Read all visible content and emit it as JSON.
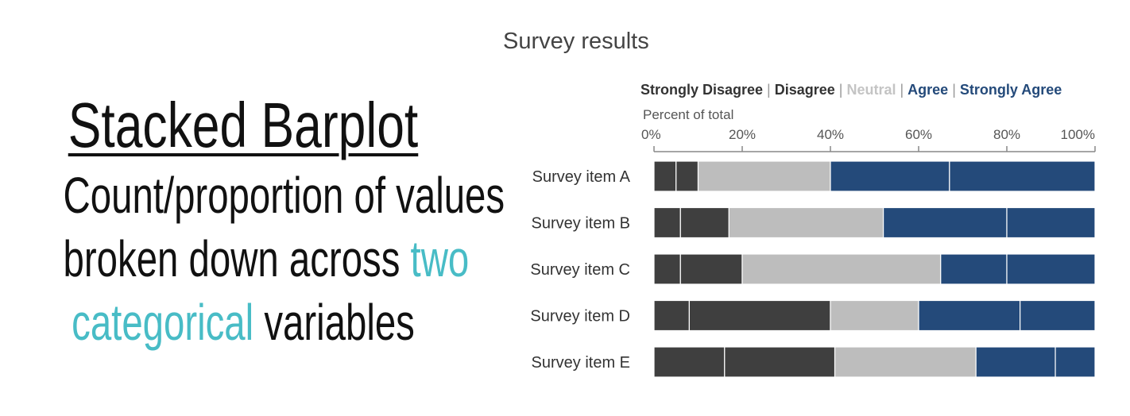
{
  "left": {
    "title": "Stacked Barplot",
    "line1": "Count/proportion of values",
    "line2_pre": "broken down across ",
    "line2_accent": "two",
    "line3_accent": "categorical",
    "line3_post": " variables"
  },
  "colors": {
    "accent": "#48bcc6",
    "strongly_disagree": "#3f3f3f",
    "disagree": "#3f3f3f",
    "neutral": "#bdbdbd",
    "agree": "#244a7a",
    "strongly_agree": "#244a7a"
  },
  "chart_data": {
    "type": "bar",
    "orientation": "horizontal",
    "stacked": true,
    "title": "Survey results",
    "xlabel": "Percent of total",
    "xlim": [
      0,
      100
    ],
    "xticks": [
      "0%",
      "20%",
      "40%",
      "60%",
      "80%",
      "100%"
    ],
    "categories": [
      "Survey item A",
      "Survey item B",
      "Survey item C",
      "Survey item D",
      "Survey item E"
    ],
    "series": [
      {
        "name": "Strongly Disagree",
        "values": [
          5,
          6,
          6,
          8,
          16
        ]
      },
      {
        "name": "Disagree",
        "values": [
          5,
          11,
          14,
          32,
          25
        ]
      },
      {
        "name": "Neutral",
        "values": [
          30,
          35,
          45,
          20,
          32
        ]
      },
      {
        "name": "Agree",
        "values": [
          27,
          28,
          15,
          23,
          18
        ]
      },
      {
        "name": "Strongly Agree",
        "values": [
          33,
          20,
          20,
          17,
          9
        ]
      }
    ],
    "legend_position": "top",
    "legend_separator": " | ",
    "grid": false
  }
}
